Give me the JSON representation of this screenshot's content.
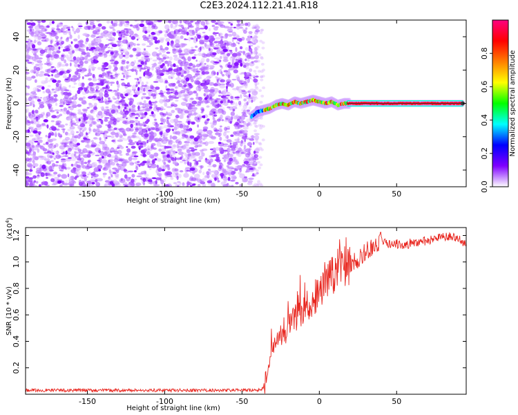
{
  "figure": {
    "title": "C2E3.2024.112.21.41.R18"
  },
  "chart_data": [
    {
      "type": "heatmap",
      "title": "C2E3.2024.112.21.41.R18",
      "xlabel": "Height of straight line (km)",
      "ylabel": "Frequency (Hz)",
      "xlim": [
        -190,
        95
      ],
      "ylim": [
        -50,
        50
      ],
      "x_ticks": [
        -150,
        -100,
        -50,
        0,
        50
      ],
      "y_ticks": [
        -40,
        -20,
        0,
        20,
        40
      ],
      "grid": false,
      "noise_region_x": [
        -190,
        -40
      ],
      "signal_start_x": -44,
      "signal_trace": {
        "x": [
          -44,
          -40,
          -36,
          -32,
          -28,
          -24,
          -20,
          -16,
          -12,
          -8,
          -4,
          0,
          4,
          8,
          12,
          16,
          20,
          40,
          60,
          80,
          93
        ],
        "freq": [
          -8,
          -5,
          -4,
          -3,
          -1,
          0,
          -1,
          1,
          0,
          1,
          2,
          1,
          0,
          1,
          -1,
          0,
          0,
          0,
          0,
          0,
          0
        ]
      },
      "colorbar": {
        "label": "Normalized spectral amplitude",
        "range": [
          0.0,
          1.0
        ],
        "ticks": [
          0.0,
          0.2,
          0.4,
          0.6,
          0.8
        ],
        "colormap": [
          "#ffffff",
          "#7f00ff",
          "#0000ff",
          "#00ffff",
          "#00ff00",
          "#ffff00",
          "#ff7f00",
          "#ff0000",
          "#ff0080"
        ]
      }
    },
    {
      "type": "line",
      "xlabel": "Height of straight line (km)",
      "ylabel": "SNR (10 * v/v)",
      "y_multiplier_label": "(x10",
      "y_multiplier_exp": "4",
      "y_multiplier_close": ")",
      "xlim": [
        -190,
        95
      ],
      "ylim": [
        0,
        1.26
      ],
      "x_ticks": [
        -150,
        -100,
        -50,
        0,
        50
      ],
      "y_ticks": [
        0.2,
        0.4,
        0.6,
        0.8,
        1.0,
        1.2
      ],
      "grid": false,
      "series": [
        {
          "color": "#e8261f",
          "x": [
            -190,
            -150,
            -100,
            -50,
            -40,
            -35,
            -32,
            -30,
            -28,
            -25,
            -22,
            -20,
            -15,
            -10,
            -5,
            0,
            5,
            10,
            15,
            20,
            25,
            30,
            35,
            40,
            45,
            50,
            55,
            60,
            65,
            70,
            75,
            80,
            85,
            90,
            93
          ],
          "values": [
            0.03,
            0.03,
            0.03,
            0.03,
            0.03,
            0.05,
            0.25,
            0.38,
            0.4,
            0.45,
            0.42,
            0.55,
            0.58,
            0.65,
            0.7,
            0.78,
            0.85,
            0.92,
            0.98,
            0.98,
            1.02,
            1.08,
            1.12,
            1.16,
            1.14,
            1.14,
            1.12,
            1.15,
            1.15,
            1.16,
            1.17,
            1.19,
            1.2,
            1.18,
            1.15
          ]
        }
      ]
    }
  ]
}
